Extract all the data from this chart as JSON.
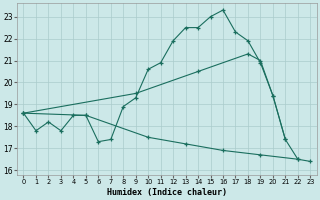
{
  "xlabel": "Humidex (Indice chaleur)",
  "background_color": "#cce8e8",
  "grid_color": "#aacccc",
  "line_color": "#1a6e5e",
  "xlim": [
    -0.5,
    23.5
  ],
  "ylim": [
    15.8,
    23.6
  ],
  "yticks": [
    16,
    17,
    18,
    19,
    20,
    21,
    22,
    23
  ],
  "xticks": [
    0,
    1,
    2,
    3,
    4,
    5,
    6,
    7,
    8,
    9,
    10,
    11,
    12,
    13,
    14,
    15,
    16,
    17,
    18,
    19,
    20,
    21,
    22,
    23
  ],
  "series": [
    {
      "x": [
        0,
        1,
        2,
        3,
        4,
        5,
        6,
        7,
        8,
        9,
        10,
        11,
        12,
        13,
        14,
        15,
        16,
        17,
        18,
        19,
        20,
        21,
        22
      ],
      "y": [
        18.6,
        17.8,
        18.2,
        17.8,
        18.5,
        18.5,
        17.3,
        17.4,
        18.9,
        19.3,
        20.6,
        20.9,
        21.9,
        22.5,
        22.5,
        23.0,
        23.3,
        22.3,
        21.9,
        20.9,
        19.4,
        17.4,
        16.5
      ]
    },
    {
      "x": [
        0,
        9,
        14,
        18,
        19,
        20,
        21
      ],
      "y": [
        18.6,
        19.5,
        20.5,
        21.3,
        21.0,
        19.4,
        17.4
      ]
    },
    {
      "x": [
        0,
        5,
        10,
        13,
        16,
        19,
        22,
        23
      ],
      "y": [
        18.6,
        18.5,
        17.5,
        17.2,
        16.9,
        16.7,
        16.5,
        16.4
      ]
    }
  ]
}
